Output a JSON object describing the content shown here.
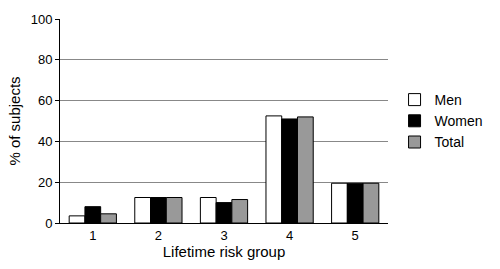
{
  "chart_data": {
    "type": "bar",
    "x_label": "Lifetime risk group",
    "y_label": "% of subjects",
    "categories": [
      "1",
      "2",
      "3",
      "4",
      "5"
    ],
    "series": [
      {
        "name": "Men",
        "color": "#ffffff",
        "values": [
          3.5,
          12.5,
          12.5,
          52.5,
          19.5
        ]
      },
      {
        "name": "Women",
        "color": "#000000",
        "values": [
          8,
          12.5,
          10,
          51,
          19.5
        ]
      },
      {
        "name": "Total",
        "color": "#999999",
        "values": [
          4.5,
          12.5,
          11.5,
          52,
          19.5
        ]
      }
    ],
    "ylim": [
      0,
      100
    ],
    "yticks": [
      0,
      20,
      40,
      60,
      80,
      100
    ],
    "grid": true,
    "legend": "right"
  }
}
